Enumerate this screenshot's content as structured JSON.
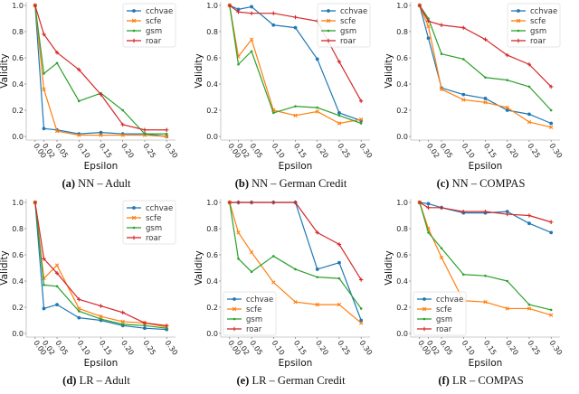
{
  "colors": {
    "cchvae": "#1f77b4",
    "scfe": "#ff7f0e",
    "gsm": "#2ca02c",
    "roar": "#d62728"
  },
  "chart_data": [
    {
      "id": "a",
      "type": "line",
      "caption_letter": "(a)",
      "caption_text": "NN – Adult",
      "xlabel": "Epsilon",
      "ylabel": "Validity",
      "ylim": [
        0,
        1.0
      ],
      "x": [
        0.0,
        0.02,
        0.05,
        0.1,
        0.15,
        0.2,
        0.25,
        0.3
      ],
      "x_tick_labels": [
        "0.00",
        "0.02",
        "0.05",
        "0.10",
        "0.15",
        "0.20",
        "0.25",
        "0.30"
      ],
      "y_tick_labels": [
        "0.0",
        "0.2",
        "0.4",
        "0.6",
        "0.8",
        "1.0"
      ],
      "legend_position": "top-right",
      "grid": false,
      "series": [
        {
          "name": "cchvae",
          "marker": "circle",
          "values": [
            1.0,
            0.06,
            0.05,
            0.02,
            0.03,
            0.02,
            0.02,
            0.0
          ]
        },
        {
          "name": "scfe",
          "marker": "x",
          "values": [
            1.0,
            0.36,
            0.04,
            0.01,
            0.01,
            0.01,
            0.01,
            0.0
          ]
        },
        {
          "name": "gsm",
          "marker": "dot",
          "values": [
            1.0,
            0.48,
            0.56,
            0.27,
            0.33,
            0.2,
            0.02,
            0.02
          ]
        },
        {
          "name": "roar",
          "marker": "plus",
          "values": [
            1.0,
            0.78,
            0.64,
            0.51,
            0.32,
            0.09,
            0.05,
            0.05
          ]
        }
      ]
    },
    {
      "id": "b",
      "type": "line",
      "caption_letter": "(b)",
      "caption_text": "NN – German Credit",
      "xlabel": "Epsilon",
      "ylabel": "Validity",
      "ylim": [
        0,
        1.0
      ],
      "x": [
        0.0,
        0.02,
        0.05,
        0.1,
        0.15,
        0.2,
        0.25,
        0.3
      ],
      "x_tick_labels": [
        "0.00",
        "0.02",
        "0.05",
        "0.10",
        "0.15",
        "0.20",
        "0.25",
        "0.30"
      ],
      "y_tick_labels": [
        "0.0",
        "0.2",
        "0.4",
        "0.6",
        "0.8",
        "1.0"
      ],
      "legend_position": "top-right",
      "grid": false,
      "series": [
        {
          "name": "cchvae",
          "marker": "circle",
          "values": [
            1.0,
            0.97,
            0.99,
            0.85,
            0.83,
            0.59,
            0.18,
            0.12
          ]
        },
        {
          "name": "scfe",
          "marker": "x",
          "values": [
            1.0,
            0.61,
            0.74,
            0.2,
            0.16,
            0.19,
            0.1,
            0.13
          ]
        },
        {
          "name": "gsm",
          "marker": "dot",
          "values": [
            1.0,
            0.55,
            0.65,
            0.18,
            0.23,
            0.22,
            0.16,
            0.1
          ]
        },
        {
          "name": "roar",
          "marker": "plus",
          "values": [
            1.0,
            0.95,
            0.94,
            0.94,
            0.91,
            0.88,
            0.57,
            0.27
          ]
        }
      ]
    },
    {
      "id": "c",
      "type": "line",
      "caption_letter": "(c)",
      "caption_text": "NN – COMPAS",
      "xlabel": "Epsilon",
      "ylabel": "Validity",
      "ylim": [
        0,
        1.0
      ],
      "x": [
        0.0,
        0.02,
        0.05,
        0.1,
        0.15,
        0.2,
        0.25,
        0.3
      ],
      "x_tick_labels": [
        "",
        "0.02",
        "0.05",
        "0.10",
        "0.15",
        "0.20",
        "0.25",
        "0.30"
      ],
      "y_tick_labels": [
        "0.0",
        "0.2",
        "0.4",
        "0.6",
        "0.8",
        "1.0"
      ],
      "legend_position": "top-right",
      "grid": false,
      "series": [
        {
          "name": "cchvae",
          "marker": "circle",
          "values": [
            1.0,
            0.75,
            0.37,
            0.32,
            0.29,
            0.2,
            0.17,
            0.1
          ]
        },
        {
          "name": "scfe",
          "marker": "x",
          "values": [
            1.0,
            0.84,
            0.36,
            0.28,
            0.26,
            0.22,
            0.11,
            0.07
          ]
        },
        {
          "name": "gsm",
          "marker": "dot",
          "values": [
            1.0,
            0.9,
            0.63,
            0.59,
            0.45,
            0.43,
            0.38,
            0.2
          ]
        },
        {
          "name": "roar",
          "marker": "plus",
          "values": [
            1.0,
            0.88,
            0.85,
            0.83,
            0.74,
            0.62,
            0.55,
            0.38
          ]
        }
      ]
    },
    {
      "id": "d",
      "type": "line",
      "caption_letter": "(d)",
      "caption_text": "LR – Adult",
      "xlabel": "Epsilon",
      "ylabel": "Validity",
      "ylim": [
        0,
        1.0
      ],
      "x": [
        0.0,
        0.02,
        0.05,
        0.1,
        0.15,
        0.2,
        0.25,
        0.3
      ],
      "x_tick_labels": [
        "0.00",
        "0.02",
        "0.05",
        "0.10",
        "0.15",
        "0.20",
        "0.25",
        "0.30"
      ],
      "y_tick_labels": [
        "0.0",
        "0.2",
        "0.4",
        "0.6",
        "0.8",
        "1.0"
      ],
      "legend_position": "top-right",
      "grid": false,
      "series": [
        {
          "name": "cchvae",
          "marker": "circle",
          "values": [
            1.0,
            0.19,
            0.22,
            0.12,
            0.1,
            0.06,
            0.04,
            0.03
          ]
        },
        {
          "name": "scfe",
          "marker": "x",
          "values": [
            1.0,
            0.42,
            0.52,
            0.19,
            0.13,
            0.09,
            0.08,
            0.05
          ]
        },
        {
          "name": "gsm",
          "marker": "dot",
          "values": [
            1.0,
            0.37,
            0.36,
            0.17,
            0.11,
            0.07,
            0.06,
            0.04
          ]
        },
        {
          "name": "roar",
          "marker": "plus",
          "values": [
            1.0,
            0.57,
            0.46,
            0.26,
            0.21,
            0.16,
            0.08,
            0.06
          ]
        }
      ]
    },
    {
      "id": "e",
      "type": "line",
      "caption_letter": "(e)",
      "caption_text": "LR – German Credit",
      "xlabel": "Epsilon",
      "ylabel": "Validity",
      "ylim": [
        0,
        1.0
      ],
      "x": [
        0.0,
        0.02,
        0.05,
        0.1,
        0.15,
        0.2,
        0.25,
        0.3
      ],
      "x_tick_labels": [
        "0.00",
        "0.02",
        "0.05",
        "0.10",
        "0.15",
        "0.20",
        "0.25",
        "0.30"
      ],
      "y_tick_labels": [
        "0.0",
        "0.2",
        "0.4",
        "0.6",
        "0.8",
        "1.0"
      ],
      "legend_position": "bottom-left",
      "grid": false,
      "series": [
        {
          "name": "cchvae",
          "marker": "circle",
          "values": [
            1.0,
            1.0,
            1.0,
            1.0,
            1.0,
            0.49,
            0.54,
            0.1
          ]
        },
        {
          "name": "scfe",
          "marker": "x",
          "values": [
            1.0,
            0.77,
            0.62,
            0.39,
            0.24,
            0.22,
            0.22,
            0.08
          ]
        },
        {
          "name": "gsm",
          "marker": "dot",
          "values": [
            1.0,
            0.57,
            0.47,
            0.59,
            0.49,
            0.43,
            0.42,
            0.19
          ]
        },
        {
          "name": "roar",
          "marker": "plus",
          "values": [
            1.0,
            1.0,
            1.0,
            1.0,
            1.0,
            0.77,
            0.68,
            0.41
          ]
        }
      ]
    },
    {
      "id": "f",
      "type": "line",
      "caption_letter": "(f)",
      "caption_text": "LR – COMPAS",
      "xlabel": "Epsilon",
      "ylabel": "Validity",
      "ylim": [
        0,
        1.0
      ],
      "x": [
        0.0,
        0.02,
        0.05,
        0.1,
        0.15,
        0.2,
        0.25,
        0.3
      ],
      "x_tick_labels": [
        "0.00",
        "0.02",
        "0.05",
        "0.10",
        "0.15",
        "0.20",
        "0.25",
        "0.30"
      ],
      "y_tick_labels": [
        "0.0",
        "0.2",
        "0.4",
        "0.6",
        "0.8",
        "1.0"
      ],
      "legend_position": "bottom-left",
      "grid": false,
      "series": [
        {
          "name": "cchvae",
          "marker": "circle",
          "values": [
            1.0,
            0.99,
            0.96,
            0.92,
            0.92,
            0.93,
            0.84,
            0.77
          ]
        },
        {
          "name": "scfe",
          "marker": "x",
          "values": [
            1.0,
            0.8,
            0.58,
            0.25,
            0.24,
            0.19,
            0.19,
            0.14
          ]
        },
        {
          "name": "gsm",
          "marker": "dot",
          "values": [
            1.0,
            0.77,
            0.65,
            0.45,
            0.44,
            0.4,
            0.22,
            0.18
          ]
        },
        {
          "name": "roar",
          "marker": "plus",
          "values": [
            1.0,
            0.96,
            0.96,
            0.93,
            0.93,
            0.91,
            0.9,
            0.85
          ]
        }
      ]
    }
  ]
}
